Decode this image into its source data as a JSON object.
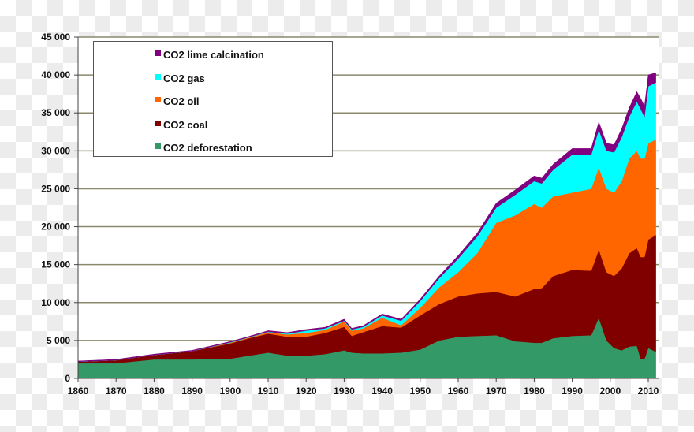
{
  "chart_data": {
    "type": "area",
    "stacked": true,
    "title": "",
    "xlabel": "",
    "ylabel": "",
    "xlim": [
      1860,
      2012
    ],
    "ylim": [
      0,
      45000
    ],
    "grid": true,
    "legend_position": "top-left",
    "x_ticks": [
      "1860",
      "1870",
      "1880",
      "1890",
      "1900",
      "1910",
      "1920",
      "1930",
      "1940",
      "1950",
      "1960",
      "1970",
      "1980",
      "1990",
      "2000",
      "2010"
    ],
    "y_ticks": [
      "0",
      "5 000",
      "10 000",
      "15 000",
      "20 000",
      "25 000",
      "30 000",
      "35 000",
      "40 000",
      "45 000"
    ],
    "x": [
      1860,
      1870,
      1880,
      1890,
      1900,
      1905,
      1910,
      1915,
      1920,
      1925,
      1930,
      1932,
      1935,
      1940,
      1945,
      1950,
      1955,
      1960,
      1965,
      1970,
      1975,
      1980,
      1982,
      1985,
      1990,
      1995,
      1997,
      1999,
      2001,
      2003,
      2005,
      2007,
      2008,
      2009,
      2010,
      2012
    ],
    "series": [
      {
        "name": "CO2 deforestation",
        "color": "#339966",
        "values": [
          2000,
          2000,
          2500,
          2500,
          2600,
          3000,
          3400,
          3000,
          3000,
          3200,
          3700,
          3400,
          3300,
          3300,
          3400,
          3800,
          5000,
          5500,
          5600,
          5700,
          4900,
          4700,
          4700,
          5300,
          5600,
          5700,
          8000,
          5000,
          4000,
          3700,
          4200,
          4300,
          2600,
          2600,
          4000,
          3500
        ]
      },
      {
        "name": "CO2 coal",
        "color": "#800000",
        "values": [
          200,
          400,
          600,
          1100,
          2000,
          2300,
          2500,
          2500,
          2500,
          2800,
          3100,
          2200,
          2800,
          3600,
          3300,
          4500,
          4800,
          5300,
          5600,
          5700,
          5900,
          7100,
          7200,
          8200,
          8700,
          8500,
          9000,
          9000,
          9500,
          10800,
          12300,
          12900,
          13400,
          13400,
          14300,
          15400
        ]
      },
      {
        "name": "CO2 oil",
        "color": "#ff6600",
        "values": [
          0,
          0,
          0,
          0,
          100,
          100,
          200,
          300,
          500,
          400,
          700,
          700,
          500,
          1100,
          300,
          1000,
          2200,
          3200,
          5300,
          9100,
          10700,
          11200,
          10600,
          10500,
          10200,
          10800,
          10800,
          11000,
          11000,
          11500,
          12500,
          12800,
          13000,
          13000,
          12700,
          12600
        ]
      },
      {
        "name": "CO2 gas",
        "color": "#00ffff",
        "values": [
          0,
          0,
          0,
          0,
          50,
          50,
          50,
          100,
          300,
          200,
          100,
          150,
          200,
          300,
          600,
          900,
          1200,
          1800,
          2200,
          2000,
          2700,
          3000,
          3200,
          3500,
          5000,
          4500,
          5000,
          5000,
          5300,
          5800,
          5500,
          6500,
          6500,
          5500,
          7500,
          7500
        ]
      },
      {
        "name": "CO2 lime calcination",
        "color": "#800080",
        "values": [
          100,
          100,
          100,
          100,
          100,
          100,
          150,
          150,
          150,
          150,
          200,
          150,
          150,
          200,
          200,
          250,
          300,
          400,
          450,
          600,
          650,
          700,
          700,
          750,
          800,
          800,
          1000,
          1000,
          1000,
          1100,
          1200,
          1300,
          1400,
          1400,
          1500,
          1300
        ]
      }
    ],
    "legend_order": [
      "CO2 lime calcination",
      "CO2 gas",
      "CO2 oil",
      "CO2 coal",
      "CO2 deforestation"
    ]
  }
}
